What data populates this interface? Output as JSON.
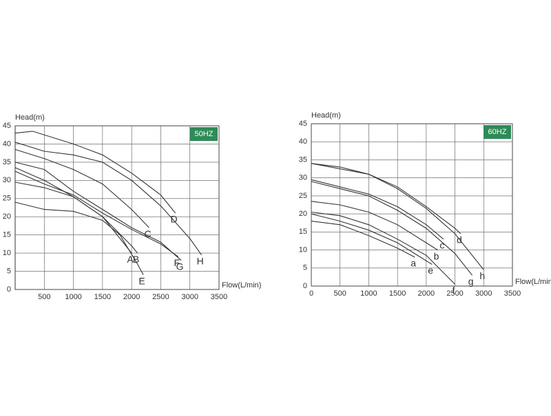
{
  "chart_data": [
    {
      "type": "line",
      "title": "50HZ",
      "x_label": "Flow(L/min)",
      "y_label": "Head(m)",
      "xlim": [
        0,
        3500
      ],
      "ylim": [
        0,
        45
      ],
      "xticks": [
        500,
        1000,
        1500,
        2000,
        2500,
        3000,
        3500
      ],
      "yticks": [
        0,
        5,
        10,
        15,
        20,
        25,
        30,
        35,
        40,
        45
      ],
      "grid": true,
      "series": [
        {
          "name": "A",
          "color": "#333333",
          "x": [
            0,
            500,
            1000,
            1500,
            1900,
            2000
          ],
          "values": [
            29.5,
            28,
            25.5,
            20,
            12,
            10
          ]
        },
        {
          "name": "B",
          "color": "#333333",
          "x": [
            0,
            500,
            1000,
            1500,
            2000,
            2100
          ],
          "values": [
            33.5,
            30,
            25.5,
            20,
            12,
            10
          ]
        },
        {
          "name": "C",
          "color": "#333333",
          "x": [
            0,
            500,
            1000,
            1500,
            2000,
            2300
          ],
          "values": [
            38.5,
            36,
            33,
            29,
            22,
            17
          ]
        },
        {
          "name": "D",
          "color": "#333333",
          "x": [
            0,
            300,
            1000,
            1500,
            2000,
            2500,
            2750
          ],
          "values": [
            43,
            43.5,
            40,
            37,
            32,
            26,
            21
          ]
        },
        {
          "name": "E",
          "color": "#333333",
          "x": [
            0,
            500,
            1000,
            1500,
            1800,
            2100,
            2200
          ],
          "values": [
            24,
            22,
            21.5,
            19,
            15,
            7,
            4
          ]
        },
        {
          "name": "F",
          "color": "#333333",
          "x": [
            0,
            500,
            1000,
            1500,
            2000,
            2500,
            2800
          ],
          "values": [
            32.5,
            29,
            26,
            21,
            16.5,
            12.5,
            9
          ]
        },
        {
          "name": "G",
          "color": "#333333",
          "x": [
            0,
            500,
            1000,
            1500,
            2000,
            2500,
            2850
          ],
          "values": [
            35,
            33,
            27,
            22,
            17,
            13,
            8
          ]
        },
        {
          "name": "H",
          "color": "#333333",
          "x": [
            0,
            500,
            1000,
            1500,
            2000,
            2500,
            3000,
            3200
          ],
          "values": [
            40.5,
            38,
            37,
            35,
            30,
            23,
            14,
            9.5
          ]
        }
      ]
    },
    {
      "type": "line",
      "title": "60HZ",
      "x_label": "Flow(L/min)",
      "y_label": "Head(m)",
      "xlim": [
        0,
        3500
      ],
      "ylim": [
        0,
        45
      ],
      "xticks": [
        0,
        500,
        1000,
        1500,
        2000,
        2500,
        3000,
        3500
      ],
      "yticks": [
        0,
        5,
        10,
        15,
        20,
        25,
        30,
        35,
        40,
        45
      ],
      "grid": true,
      "series": [
        {
          "name": "a",
          "color": "#333333",
          "x": [
            0,
            500,
            1000,
            1500,
            1800
          ],
          "values": [
            18,
            17,
            14,
            10.5,
            8
          ]
        },
        {
          "name": "b",
          "color": "#333333",
          "x": [
            0,
            500,
            1000,
            1500,
            2000,
            2200
          ],
          "values": [
            23.5,
            22.5,
            20.5,
            17,
            12,
            10
          ]
        },
        {
          "name": "c",
          "color": "#333333",
          "x": [
            0,
            500,
            1000,
            1500,
            2000,
            2300
          ],
          "values": [
            29.5,
            27.5,
            25.5,
            22,
            17,
            13
          ]
        },
        {
          "name": "d",
          "color": "#333333",
          "x": [
            0,
            500,
            1000,
            1500,
            2000,
            2500,
            2600
          ],
          "values": [
            34,
            33,
            31,
            27.5,
            22,
            16,
            14.5
          ]
        },
        {
          "name": "e",
          "color": "#333333",
          "x": [
            0,
            500,
            1000,
            1500,
            1900,
            2100
          ],
          "values": [
            20,
            18,
            15.5,
            12,
            8,
            6
          ]
        },
        {
          "name": "f",
          "color": "#333333",
          "x": [
            0,
            500,
            1000,
            1500,
            2000,
            2500
          ],
          "values": [
            20.5,
            19.5,
            17,
            13,
            8.5,
            0.5
          ]
        },
        {
          "name": "g",
          "color": "#333333",
          "x": [
            0,
            1000,
            1500,
            2000,
            2500,
            2800
          ],
          "values": [
            29,
            25,
            21,
            16,
            9,
            3
          ]
        },
        {
          "name": "h",
          "color": "#333333",
          "x": [
            0,
            1000,
            1500,
            2000,
            2500,
            3000
          ],
          "values": [
            34,
            31,
            27,
            21.5,
            14.5,
            4.5
          ]
        }
      ]
    }
  ]
}
